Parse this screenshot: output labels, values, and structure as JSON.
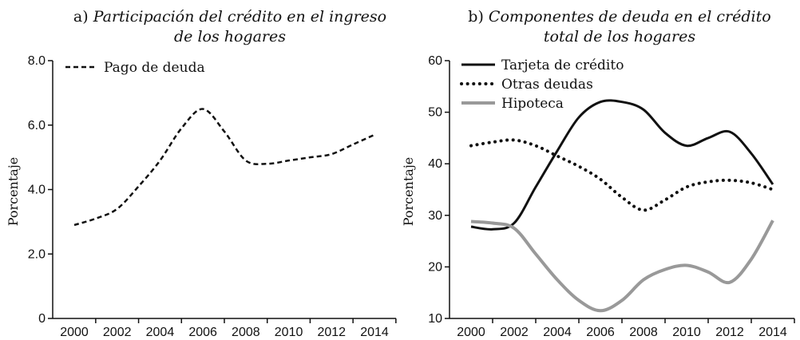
{
  "chart_data": [
    {
      "type": "line",
      "title_prefix": "a)",
      "title_lines": [
        "Participación del crédito en el ingreso",
        "de los hogares"
      ],
      "xlabel": "",
      "ylabel": "Porcentaje",
      "x": [
        2000,
        2001,
        2002,
        2003,
        2004,
        2005,
        2006,
        2007,
        2008,
        2009,
        2010,
        2011,
        2012,
        2013,
        2014
      ],
      "xticks": [
        "2000",
        "2002",
        "2004",
        "2006",
        "2008",
        "2010",
        "2012",
        "2014"
      ],
      "yticks": [
        "0",
        "2.0",
        "4.0",
        "6.0",
        "8.0"
      ],
      "ylim": [
        0,
        8
      ],
      "legend_position": "top-left",
      "series": [
        {
          "name": "Pago de deuda",
          "style": "dashed",
          "color": "#111111",
          "values": [
            2.9,
            3.1,
            3.4,
            4.1,
            4.9,
            5.9,
            6.5,
            5.8,
            4.9,
            4.8,
            4.9,
            5.0,
            5.1,
            5.4,
            5.7
          ]
        }
      ]
    },
    {
      "type": "line",
      "title_prefix": "b)",
      "title_lines": [
        "Componentes de deuda en el crédito",
        "total de los hogares"
      ],
      "xlabel": "",
      "ylabel": "Porcentaje",
      "x": [
        2000,
        2001,
        2002,
        2003,
        2004,
        2005,
        2006,
        2007,
        2008,
        2009,
        2010,
        2011,
        2012,
        2013,
        2014
      ],
      "xticks": [
        "2000",
        "2002",
        "2004",
        "2006",
        "2008",
        "2010",
        "2012",
        "2014"
      ],
      "yticks": [
        "10",
        "20",
        "30",
        "40",
        "50",
        "60"
      ],
      "ylim": [
        10,
        60
      ],
      "legend_position": "top-left",
      "series": [
        {
          "name": "Tarjeta de crédito",
          "style": "solid",
          "color": "#111111",
          "values": [
            27.8,
            27.3,
            28.5,
            35.5,
            42.5,
            49,
            52,
            52,
            50.5,
            46,
            43.5,
            45,
            46.2,
            42,
            36
          ]
        },
        {
          "name": "Otras deudas",
          "style": "dotted",
          "color": "#111111",
          "values": [
            43.5,
            44.2,
            44.6,
            43.5,
            41.5,
            39.5,
            37,
            33.5,
            31,
            33,
            35.5,
            36.5,
            36.8,
            36.3,
            35
          ]
        },
        {
          "name": "Hipoteca",
          "style": "solid",
          "color": "#999999",
          "values": [
            28.8,
            28.5,
            27.5,
            22.5,
            17.5,
            13.5,
            11.5,
            13.5,
            17.5,
            19.5,
            20.3,
            19,
            17,
            21.5,
            29
          ]
        }
      ]
    }
  ]
}
